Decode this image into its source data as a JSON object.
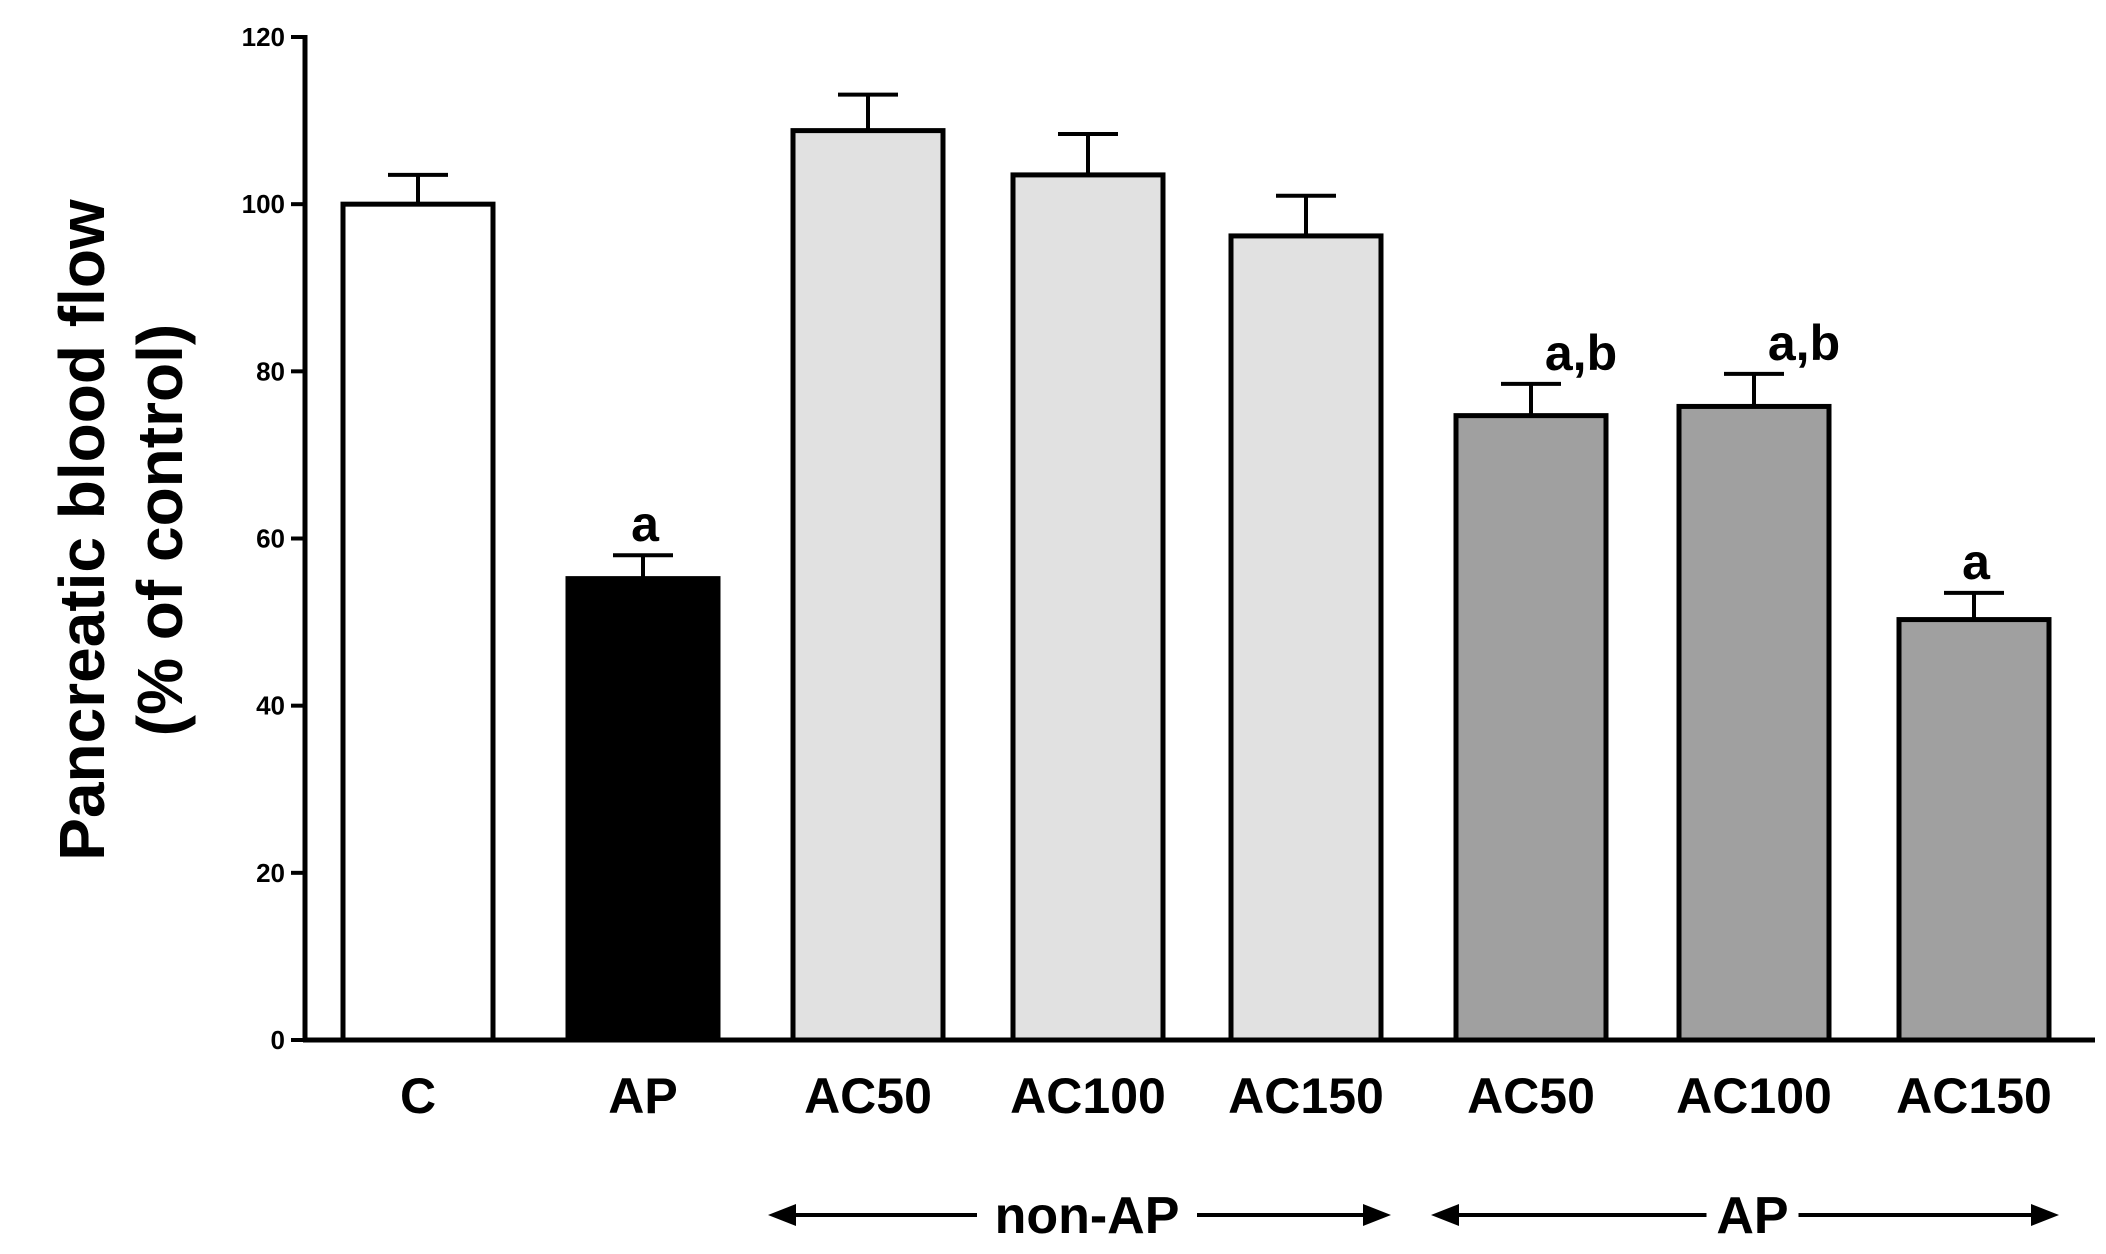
{
  "chart_data": {
    "type": "bar",
    "ylabel_lines": [
      "Pancreatic blood flow",
      "(% of control)"
    ],
    "ylim": [
      0,
      120
    ],
    "yticks": [
      0,
      20,
      40,
      60,
      80,
      100,
      120
    ],
    "categories": [
      "C",
      "AP",
      "AC50",
      "AC100",
      "AC150",
      "AC50",
      "AC100",
      "AC150"
    ],
    "values": [
      100,
      55.2,
      108.8,
      103.5,
      96.2,
      74.7,
      75.8,
      50.3
    ],
    "errors": [
      3.5,
      2.8,
      4.3,
      4.9,
      4.8,
      3.8,
      3.9,
      3.2
    ],
    "colors": [
      "#ffffff",
      "#000000",
      "#e1e1e1",
      "#e1e1e1",
      "#e1e1e1",
      "#a0a0a0",
      "#a0a0a0",
      "#a0a0a0"
    ],
    "annotations": [
      "",
      "a",
      "",
      "",
      "",
      "a,b",
      "a,b",
      "a"
    ],
    "groups": [
      {
        "label": "non-AP",
        "from": 2,
        "to": 4
      },
      {
        "label": "AP",
        "from": 5,
        "to": 7
      }
    ]
  }
}
